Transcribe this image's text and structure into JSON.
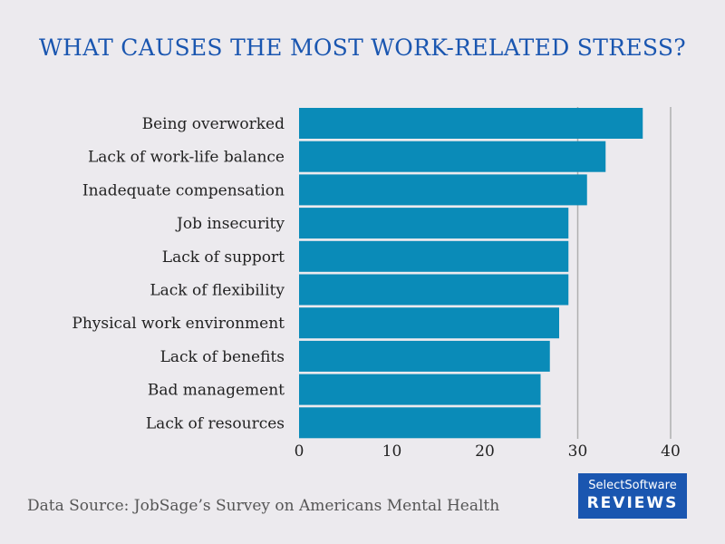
{
  "colors": {
    "background": "#ECEAEE",
    "title": "#1A56B0",
    "bar": "#0A8BB8",
    "text": "#222222",
    "source_text": "#555555",
    "grid": "#AFAFAF",
    "logo_bg": "#1A56B0",
    "logo_text": "#FFFFFF"
  },
  "chart_data": {
    "type": "bar",
    "orientation": "horizontal",
    "title": "WHAT CAUSES THE MOST WORK-RELATED STRESS?",
    "categories": [
      "Being overworked",
      "Lack of work-life balance",
      "Inadequate compensation",
      "Job insecurity",
      "Lack of support",
      "Lack of flexibility",
      "Physical work environment",
      "Lack of benefits",
      "Bad management",
      "Lack of resources"
    ],
    "values": [
      37,
      33,
      31,
      29,
      29,
      29,
      28,
      27,
      26,
      26
    ],
    "xlim": [
      0,
      40
    ],
    "xticks": [
      "0",
      "10",
      "20",
      "30",
      "40"
    ],
    "grid": "vertical at 30 and 40",
    "legend": "none"
  },
  "footer": {
    "source": "Data Source: JobSage’s Survey on Americans Mental Health"
  },
  "logo": {
    "line1": "SelectSoftware",
    "line2": "REVIEWS"
  }
}
